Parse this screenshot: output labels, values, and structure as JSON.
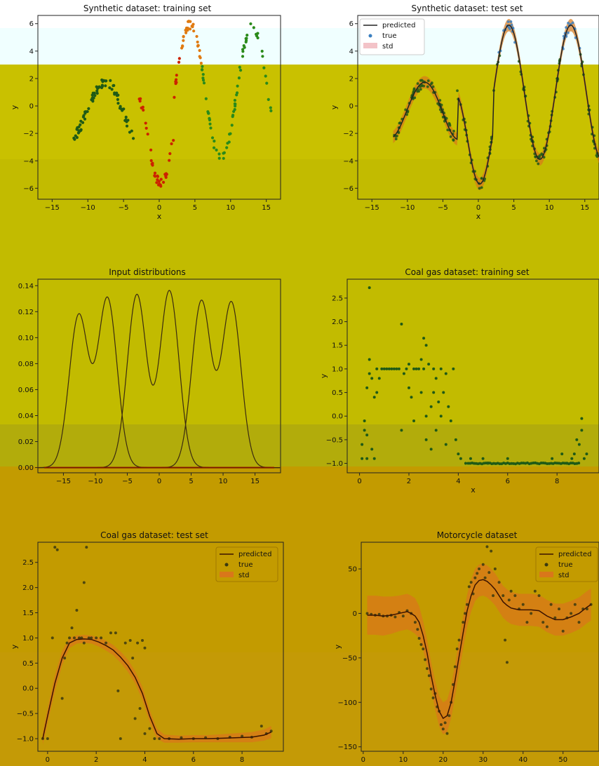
{
  "colors": {
    "band_top": "#f0ffff",
    "band_olive": "#c9c100",
    "band_olive2": "#b5ad00",
    "band_amber": "#c39b00",
    "band_amber2": "#c49a06",
    "line": "#222222",
    "pt_dark": "#1f5a16",
    "pt_green": "#2a8a1a",
    "pt_orange": "#e07a10",
    "pt_red": "#cc2200",
    "pt_blue": "#3a7fc0",
    "std_fill": "#d9771a",
    "std_pink": "#f3c3c8"
  },
  "legend": {
    "predicted": "predicted",
    "true": "true",
    "std": "std"
  },
  "chart_data": [
    {
      "id": "syn-train",
      "type": "scatter",
      "title": "Synthetic dataset: training set",
      "xlabel": "x",
      "ylabel": "y",
      "xlim": [
        -17,
        17
      ],
      "ylim": [
        -6.8,
        6.6
      ],
      "xticks": [
        -15,
        -10,
        -5,
        0,
        5,
        10,
        15
      ],
      "yticks": [
        -6,
        -4,
        -2,
        0,
        2,
        4,
        6
      ],
      "series": [
        {
          "range": [
            -12,
            -6
          ],
          "n": 60,
          "f": "syn"
        },
        {
          "range": [
            -6,
            -3
          ],
          "n": 20,
          "f": "syn"
        },
        {
          "range": [
            -3,
            3
          ],
          "n": 45,
          "f": "syn"
        },
        {
          "range": [
            3,
            6
          ],
          "n": 30,
          "f": "syn"
        },
        {
          "range": [
            6,
            16
          ],
          "n": 70,
          "f": "syn"
        }
      ]
    },
    {
      "id": "syn-test",
      "type": "line",
      "title": "Synthetic dataset: test set",
      "xlabel": "x",
      "ylabel": "y",
      "xlim": [
        -17,
        17
      ],
      "ylim": [
        -6.8,
        6.6
      ],
      "xticks": [
        -15,
        -10,
        -5,
        0,
        5,
        10,
        15
      ],
      "yticks": [
        -6,
        -4,
        -2,
        0,
        2,
        4,
        6
      ],
      "range": [
        -12,
        17
      ],
      "f": "syn",
      "std": 0.45,
      "n_true": 220
    },
    {
      "id": "input-dist",
      "type": "line",
      "title": "Input distributions",
      "xlim": [
        -19,
        19
      ],
      "ylim": [
        -0.004,
        0.145
      ],
      "xticks": [
        -15,
        -10,
        -5,
        0,
        5,
        10,
        15
      ],
      "yticks": [
        0.0,
        0.02,
        0.04,
        0.06,
        0.08,
        0.1,
        0.12,
        0.14
      ],
      "ytick_labels": [
        "0.00",
        "0.02",
        "0.04",
        "0.06",
        "0.08",
        "0.10",
        "0.12",
        "0.14"
      ],
      "series": [
        {
          "type": "bimodal",
          "peaks": [
            [
              -12.6,
              0.117
            ],
            [
              -8.1,
              0.13
            ]
          ]
        },
        {
          "type": "bimodal",
          "peaks": [
            [
              -3.5,
              0.133
            ],
            [
              1.6,
              0.136
            ]
          ]
        },
        {
          "type": "bimodal",
          "peaks": [
            [
              6.6,
              0.128
            ],
            [
              11.3,
              0.127
            ]
          ]
        }
      ]
    },
    {
      "id": "coal-train",
      "type": "scatter",
      "title": "Coal gas dataset: training set",
      "xlabel": "x",
      "ylabel": "y",
      "xlim": [
        -0.5,
        9.7
      ],
      "ylim": [
        -1.2,
        2.9
      ],
      "xticks": [
        0,
        2,
        4,
        6,
        8
      ],
      "yticks": [
        -1.0,
        -0.5,
        0.0,
        0.5,
        1.0,
        1.5,
        2.0,
        2.5
      ],
      "ytick_labels": [
        "−1.0",
        "−0.5",
        "0.0",
        "0.5",
        "1.0",
        "1.5",
        "2.0",
        "2.5"
      ],
      "points": [
        [
          0.1,
          -0.9
        ],
        [
          0.1,
          -0.6
        ],
        [
          0.2,
          -0.1
        ],
        [
          0.2,
          -0.3
        ],
        [
          0.3,
          -0.9
        ],
        [
          0.3,
          -0.4
        ],
        [
          0.3,
          0.6
        ],
        [
          0.4,
          0.9
        ],
        [
          0.4,
          1.2
        ],
        [
          0.4,
          2.72
        ],
        [
          0.5,
          0.8
        ],
        [
          0.5,
          -0.7
        ],
        [
          0.6,
          0.4
        ],
        [
          0.6,
          -0.9
        ],
        [
          0.7,
          0.5
        ],
        [
          0.7,
          1.0
        ],
        [
          0.8,
          0.8
        ],
        [
          0.9,
          1.0
        ],
        [
          1.0,
          1.0
        ],
        [
          1.1,
          1.0
        ],
        [
          1.2,
          1.0
        ],
        [
          1.3,
          1.0
        ],
        [
          1.4,
          1.0
        ],
        [
          1.5,
          1.0
        ],
        [
          1.6,
          1.0
        ],
        [
          1.7,
          1.95
        ],
        [
          1.7,
          -0.3
        ],
        [
          1.8,
          0.9
        ],
        [
          1.9,
          1.0
        ],
        [
          2.0,
          1.1
        ],
        [
          2.0,
          0.6
        ],
        [
          2.1,
          0.4
        ],
        [
          2.2,
          1.0
        ],
        [
          2.2,
          -0.1
        ],
        [
          2.3,
          1.0
        ],
        [
          2.4,
          1.0
        ],
        [
          2.5,
          1.2
        ],
        [
          2.5,
          0.5
        ],
        [
          2.6,
          1.65
        ],
        [
          2.6,
          1.0
        ],
        [
          2.7,
          1.5
        ],
        [
          2.7,
          0.0
        ],
        [
          2.7,
          -0.5
        ],
        [
          2.8,
          1.1
        ],
        [
          2.9,
          0.2
        ],
        [
          2.9,
          -0.7
        ],
        [
          3.0,
          1.0
        ],
        [
          3.0,
          0.5
        ],
        [
          3.1,
          0.8
        ],
        [
          3.1,
          -0.3
        ],
        [
          3.2,
          0.3
        ],
        [
          3.3,
          0.0
        ],
        [
          3.3,
          1.0
        ],
        [
          3.4,
          0.5
        ],
        [
          3.5,
          0.9
        ],
        [
          3.5,
          -0.6
        ],
        [
          3.6,
          0.2
        ],
        [
          3.7,
          -0.1
        ],
        [
          3.8,
          1.0
        ],
        [
          3.9,
          -0.5
        ],
        [
          4.0,
          -0.8
        ],
        [
          4.1,
          -0.9
        ],
        [
          4.3,
          -1.0
        ],
        [
          4.5,
          -0.9
        ],
        [
          5.0,
          -0.9
        ],
        [
          5.2,
          -1.0
        ],
        [
          6.0,
          -0.9
        ],
        [
          7.8,
          -0.9
        ],
        [
          8.2,
          -0.8
        ],
        [
          8.4,
          -1.0
        ],
        [
          8.6,
          -0.9
        ],
        [
          8.7,
          -0.8
        ],
        [
          8.8,
          -0.5
        ],
        [
          8.9,
          -0.6
        ],
        [
          9.0,
          -0.05
        ],
        [
          9.0,
          -0.3
        ],
        [
          9.1,
          -0.9
        ],
        [
          9.2,
          -0.8
        ]
      ],
      "flat_run": [
        4.4,
        8.9,
        -1.0
      ]
    },
    {
      "id": "coal-test",
      "type": "line",
      "title": "Coal gas dataset: test set",
      "xlabel": "x",
      "ylabel": "y",
      "xlim": [
        -0.4,
        9.7
      ],
      "ylim": [
        -1.25,
        2.9
      ],
      "xticks": [
        0,
        2,
        4,
        6,
        8
      ],
      "yticks": [
        -1.0,
        -0.5,
        0.0,
        0.5,
        1.0,
        1.5,
        2.0,
        2.5
      ],
      "ytick_labels": [
        "−1.0",
        "−0.5",
        "0.0",
        "0.5",
        "1.0",
        "1.5",
        "2.0",
        "2.5"
      ],
      "line": [
        [
          -0.2,
          -1.0
        ],
        [
          0.0,
          -0.55
        ],
        [
          0.3,
          0.1
        ],
        [
          0.6,
          0.6
        ],
        [
          0.9,
          0.9
        ],
        [
          1.2,
          0.97
        ],
        [
          1.5,
          0.98
        ],
        [
          1.8,
          0.97
        ],
        [
          2.1,
          0.92
        ],
        [
          2.4,
          0.85
        ],
        [
          2.7,
          0.76
        ],
        [
          3.0,
          0.62
        ],
        [
          3.3,
          0.45
        ],
        [
          3.6,
          0.22
        ],
        [
          3.9,
          -0.1
        ],
        [
          4.2,
          -0.55
        ],
        [
          4.5,
          -0.9
        ],
        [
          4.8,
          -1.0
        ],
        [
          5.4,
          -1.01
        ],
        [
          6.0,
          -1.0
        ],
        [
          6.6,
          -1.0
        ],
        [
          7.2,
          -0.99
        ],
        [
          7.8,
          -0.98
        ],
        [
          8.4,
          -0.97
        ],
        [
          8.9,
          -0.93
        ],
        [
          9.2,
          -0.87
        ]
      ],
      "std": [
        0.12,
        0.14,
        0.16,
        0.14,
        0.1,
        0.08,
        0.08,
        0.08,
        0.09,
        0.1,
        0.1,
        0.11,
        0.12,
        0.12,
        0.13,
        0.12,
        0.1,
        0.08,
        0.07,
        0.07,
        0.07,
        0.08,
        0.09,
        0.1,
        0.11,
        0.12
      ],
      "true_points": [
        [
          -0.2,
          -1.0
        ],
        [
          0.0,
          -1.0
        ],
        [
          0.2,
          1.0
        ],
        [
          0.3,
          2.8
        ],
        [
          0.4,
          2.75
        ],
        [
          0.6,
          -0.2
        ],
        [
          0.7,
          0.6
        ],
        [
          0.8,
          0.9
        ],
        [
          0.9,
          1.0
        ],
        [
          1.0,
          1.2
        ],
        [
          1.1,
          1.0
        ],
        [
          1.2,
          1.55
        ],
        [
          1.3,
          1.0
        ],
        [
          1.4,
          1.0
        ],
        [
          1.5,
          2.1
        ],
        [
          1.5,
          0.9
        ],
        [
          1.6,
          2.8
        ],
        [
          1.7,
          1.0
        ],
        [
          1.8,
          1.0
        ],
        [
          2.0,
          1.0
        ],
        [
          2.2,
          1.0
        ],
        [
          2.4,
          0.9
        ],
        [
          2.6,
          1.1
        ],
        [
          2.8,
          1.1
        ],
        [
          2.9,
          -0.05
        ],
        [
          3.0,
          -1.0
        ],
        [
          3.2,
          0.9
        ],
        [
          3.4,
          0.95
        ],
        [
          3.5,
          0.6
        ],
        [
          3.6,
          -0.6
        ],
        [
          3.7,
          0.9
        ],
        [
          3.8,
          -0.4
        ],
        [
          3.9,
          0.95
        ],
        [
          4.0,
          0.8
        ],
        [
          4.0,
          -0.9
        ],
        [
          4.2,
          -0.8
        ],
        [
          4.4,
          -1.0
        ],
        [
          4.6,
          -1.0
        ],
        [
          5.0,
          -1.0
        ],
        [
          5.5,
          -0.98
        ],
        [
          6.0,
          -1.0
        ],
        [
          6.5,
          -0.98
        ],
        [
          7.0,
          -1.0
        ],
        [
          7.5,
          -0.97
        ],
        [
          8.0,
          -0.95
        ],
        [
          8.4,
          -0.97
        ],
        [
          8.8,
          -0.75
        ],
        [
          9.0,
          -0.9
        ],
        [
          9.2,
          -0.85
        ]
      ]
    },
    {
      "id": "motorcycle",
      "type": "line",
      "title": "Motorcycle dataset",
      "xlabel": "x",
      "ylabel": "y",
      "xlim": [
        -0.5,
        59
      ],
      "ylim": [
        -155,
        80
      ],
      "xticks": [
        0,
        10,
        20,
        30,
        40,
        50
      ],
      "yticks": [
        -150,
        -100,
        -50,
        0,
        50
      ],
      "ytick_labels": [
        "−150",
        "−100",
        "−50",
        "0",
        "50"
      ],
      "line": [
        [
          1,
          -2
        ],
        [
          3,
          -2
        ],
        [
          5,
          -3
        ],
        [
          7,
          -2
        ],
        [
          9,
          0
        ],
        [
          11,
          2
        ],
        [
          12,
          0
        ],
        [
          13,
          -3
        ],
        [
          14,
          -10
        ],
        [
          15,
          -25
        ],
        [
          16,
          -45
        ],
        [
          17,
          -70
        ],
        [
          18,
          -92
        ],
        [
          19,
          -110
        ],
        [
          20,
          -118
        ],
        [
          21,
          -115
        ],
        [
          22,
          -100
        ],
        [
          23,
          -75
        ],
        [
          24,
          -48
        ],
        [
          25,
          -22
        ],
        [
          26,
          3
        ],
        [
          27,
          20
        ],
        [
          28,
          32
        ],
        [
          29,
          37
        ],
        [
          30,
          38
        ],
        [
          31,
          36
        ],
        [
          32,
          32
        ],
        [
          33,
          27
        ],
        [
          34,
          20
        ],
        [
          35,
          13
        ],
        [
          36,
          9
        ],
        [
          37,
          6
        ],
        [
          38,
          5
        ],
        [
          39,
          4
        ],
        [
          40,
          4
        ],
        [
          42,
          4
        ],
        [
          44,
          3
        ],
        [
          46,
          -3
        ],
        [
          48,
          -7
        ],
        [
          50,
          -7
        ],
        [
          52,
          -4
        ],
        [
          54,
          0
        ],
        [
          56,
          7
        ],
        [
          57,
          10
        ]
      ],
      "std": [
        22,
        22,
        22,
        21,
        20,
        20,
        20,
        20,
        18,
        16,
        15,
        15,
        16,
        17,
        18,
        18,
        18,
        18,
        18,
        18,
        18,
        18,
        18,
        18,
        18,
        18,
        18,
        18,
        18,
        18,
        18,
        18,
        18,
        18,
        18,
        18,
        18,
        18,
        18,
        18,
        18,
        18,
        18,
        18
      ],
      "true_points": [
        [
          1,
          0
        ],
        [
          2,
          -1
        ],
        [
          3,
          -2
        ],
        [
          4,
          -1
        ],
        [
          5,
          -3
        ],
        [
          6,
          -3
        ],
        [
          7,
          -2
        ],
        [
          8,
          -4
        ],
        [
          9,
          1
        ],
        [
          10,
          -3
        ],
        [
          11,
          3
        ],
        [
          12,
          0
        ],
        [
          13,
          -10
        ],
        [
          13.6,
          -18
        ],
        [
          14,
          -28
        ],
        [
          14.5,
          -35
        ],
        [
          15,
          -40
        ],
        [
          15.5,
          -52
        ],
        [
          16,
          -62
        ],
        [
          16.5,
          -70
        ],
        [
          17,
          -85
        ],
        [
          17.5,
          -95
        ],
        [
          18,
          -90
        ],
        [
          18.5,
          -105
        ],
        [
          19,
          -110
        ],
        [
          19.5,
          -125
        ],
        [
          20,
          -130
        ],
        [
          20.5,
          -123
        ],
        [
          21,
          -135
        ],
        [
          21.5,
          -115
        ],
        [
          22,
          -100
        ],
        [
          22.5,
          -80
        ],
        [
          23,
          -60
        ],
        [
          23.5,
          -40
        ],
        [
          24,
          -30
        ],
        [
          25,
          -10
        ],
        [
          25.5,
          0
        ],
        [
          26,
          10
        ],
        [
          26.5,
          30
        ],
        [
          27,
          35
        ],
        [
          27.5,
          22
        ],
        [
          28,
          40
        ],
        [
          28.5,
          45
        ],
        [
          29,
          50
        ],
        [
          30,
          55
        ],
        [
          30.5,
          40
        ],
        [
          31,
          75
        ],
        [
          31.5,
          46
        ],
        [
          32,
          70
        ],
        [
          32.5,
          20
        ],
        [
          33,
          50
        ],
        [
          34,
          35
        ],
        [
          35,
          20
        ],
        [
          35.5,
          -30
        ],
        [
          36,
          -55
        ],
        [
          36.5,
          15
        ],
        [
          37,
          25
        ],
        [
          38,
          20
        ],
        [
          39,
          5
        ],
        [
          40,
          10
        ],
        [
          41,
          -10
        ],
        [
          42,
          0
        ],
        [
          43,
          25
        ],
        [
          44,
          20
        ],
        [
          45,
          -10
        ],
        [
          46,
          -15
        ],
        [
          47,
          10
        ],
        [
          48,
          -5
        ],
        [
          49,
          5
        ],
        [
          50,
          -20
        ],
        [
          51,
          -5
        ],
        [
          52,
          0
        ],
        [
          53,
          10
        ],
        [
          54,
          -10
        ],
        [
          55,
          5
        ],
        [
          56,
          5
        ],
        [
          57,
          10
        ]
      ]
    }
  ]
}
